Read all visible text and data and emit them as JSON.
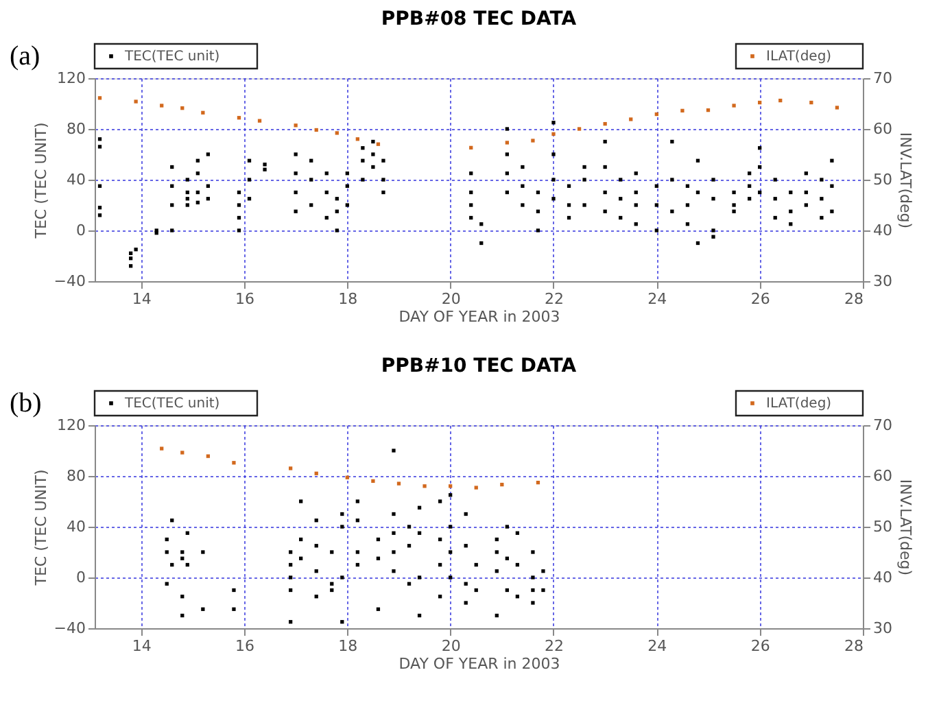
{
  "chart_data": [
    {
      "type": "scatter",
      "title": "PPB#08 TEC DATA",
      "xlabel": "DAY OF YEAR in 2003",
      "ylabel": "TEC (TEC UNIT)",
      "y2label": "INV.LAT(deg)",
      "annotations": [
        "(a)"
      ],
      "xlim": [
        13.1,
        28
      ],
      "xticks": [
        14,
        16,
        18,
        20,
        22,
        24,
        26,
        28
      ],
      "ylim": [
        -40,
        120
      ],
      "yticks": [
        -40,
        0,
        40,
        80,
        120
      ],
      "y2lim": [
        30,
        70
      ],
      "y2ticks": [
        30,
        40,
        50,
        60,
        70
      ],
      "grid": true,
      "legend": "top",
      "marker": "square",
      "series": [
        {
          "name": "TEC(TEC unit)",
          "color": "#000000",
          "x": [
            13.2,
            13.2,
            13.2,
            13.2,
            13.2,
            13.8,
            13.8,
            13.8,
            13.9,
            14.3,
            14.3,
            14.6,
            14.6,
            14.6,
            14.6,
            14.9,
            14.9,
            14.9,
            14.9,
            15.1,
            15.1,
            15.1,
            15.1,
            15.3,
            15.3,
            15.3,
            15.9,
            15.9,
            15.9,
            15.9,
            16.1,
            16.1,
            16.1,
            16.4,
            16.4,
            17.0,
            17.0,
            17.0,
            17.0,
            17.3,
            17.3,
            17.3,
            17.6,
            17.6,
            17.6,
            17.8,
            17.8,
            17.8,
            18.0,
            18.0,
            18.0,
            18.3,
            18.3,
            18.3,
            18.5,
            18.5,
            18.5,
            18.7,
            18.7,
            18.7,
            20.4,
            20.4,
            20.4,
            20.4,
            20.6,
            20.6,
            21.1,
            21.1,
            21.1,
            21.1,
            21.4,
            21.4,
            21.4,
            21.7,
            21.7,
            21.7,
            22.0,
            22.0,
            22.0,
            22.0,
            22.3,
            22.3,
            22.3,
            22.6,
            22.6,
            22.6,
            23.0,
            23.0,
            23.0,
            23.0,
            23.3,
            23.3,
            23.3,
            23.6,
            23.6,
            23.6,
            23.6,
            24.0,
            24.0,
            24.0,
            24.3,
            24.3,
            24.3,
            24.6,
            24.6,
            24.6,
            24.8,
            24.8,
            24.8,
            25.1,
            25.1,
            25.1,
            25.1,
            25.5,
            25.5,
            25.5,
            25.8,
            25.8,
            25.8,
            26.0,
            26.0,
            26.0,
            26.3,
            26.3,
            26.3,
            26.6,
            26.6,
            26.6,
            26.9,
            26.9,
            26.9,
            27.2,
            27.2,
            27.2,
            27.4,
            27.4,
            27.4
          ],
          "values": [
            72,
            66,
            35,
            18,
            12,
            -28,
            -22,
            -18,
            -15,
            0,
            -2,
            0,
            50,
            35,
            20,
            30,
            25,
            40,
            20,
            55,
            45,
            30,
            22,
            60,
            35,
            25,
            20,
            30,
            0,
            10,
            40,
            55,
            25,
            52,
            48,
            60,
            45,
            30,
            15,
            55,
            40,
            20,
            45,
            30,
            10,
            25,
            15,
            0,
            35,
            45,
            20,
            55,
            65,
            40,
            70,
            60,
            50,
            55,
            40,
            30,
            45,
            30,
            20,
            10,
            5,
            -10,
            80,
            60,
            45,
            30,
            50,
            35,
            20,
            30,
            15,
            0,
            85,
            60,
            40,
            25,
            35,
            20,
            10,
            50,
            40,
            20,
            70,
            50,
            30,
            15,
            40,
            25,
            10,
            45,
            30,
            20,
            5,
            35,
            20,
            0,
            70,
            40,
            15,
            35,
            20,
            5,
            55,
            30,
            -10,
            40,
            25,
            -5,
            0,
            30,
            15,
            20,
            45,
            35,
            25,
            65,
            50,
            30,
            40,
            25,
            10,
            30,
            15,
            5,
            45,
            30,
            20,
            40,
            25,
            10,
            55,
            35,
            15
          ]
        },
        {
          "name": "ILAT(deg)",
          "color": "#d2691e",
          "axis": "y2",
          "x": [
            13.2,
            13.9,
            14.4,
            14.8,
            15.2,
            15.9,
            16.3,
            17.0,
            17.4,
            17.8,
            18.2,
            18.6,
            20.4,
            21.1,
            21.6,
            22.0,
            22.5,
            23.0,
            23.5,
            24.0,
            24.5,
            25.0,
            25.5,
            26.0,
            26.4,
            27.0,
            27.5
          ],
          "values": [
            66.1,
            65.4,
            64.6,
            64.1,
            63.2,
            62.2,
            61.6,
            60.7,
            59.8,
            59.2,
            58.0,
            57.0,
            56.3,
            57.3,
            57.7,
            59.0,
            60.0,
            61.0,
            61.9,
            62.9,
            63.6,
            63.7,
            64.6,
            65.2,
            65.6,
            65.2,
            64.2
          ]
        }
      ]
    },
    {
      "type": "scatter",
      "title": "PPB#10 TEC DATA",
      "xlabel": "DAY OF YEAR in 2003",
      "ylabel": "TEC (TEC UNIT)",
      "y2label": "INV.LAT(deg)",
      "annotations": [
        "(b)"
      ],
      "xlim": [
        13.1,
        28
      ],
      "xticks": [
        14,
        16,
        18,
        20,
        22,
        24,
        26,
        28
      ],
      "ylim": [
        -40,
        120
      ],
      "yticks": [
        -40,
        0,
        40,
        80,
        120
      ],
      "y2lim": [
        30,
        70
      ],
      "y2ticks": [
        30,
        40,
        50,
        60,
        70
      ],
      "grid": true,
      "legend": "top",
      "marker": "square",
      "series": [
        {
          "name": "TEC(TEC unit)",
          "color": "#000000",
          "x": [
            14.5,
            14.5,
            14.5,
            14.6,
            14.6,
            14.8,
            14.8,
            14.8,
            14.8,
            14.9,
            14.9,
            15.2,
            15.2,
            15.8,
            15.8,
            16.9,
            16.9,
            16.9,
            16.9,
            16.9,
            17.1,
            17.1,
            17.1,
            17.4,
            17.4,
            17.4,
            17.4,
            17.7,
            17.7,
            17.7,
            17.9,
            17.9,
            17.9,
            17.9,
            18.2,
            18.2,
            18.2,
            18.2,
            18.6,
            18.6,
            18.6,
            18.9,
            18.9,
            18.9,
            18.9,
            18.9,
            19.2,
            19.2,
            19.2,
            19.4,
            19.4,
            19.4,
            19.4,
            19.8,
            19.8,
            19.8,
            19.8,
            20.0,
            20.0,
            20.0,
            20.0,
            20.3,
            20.3,
            20.3,
            20.3,
            20.5,
            20.5,
            20.9,
            20.9,
            20.9,
            20.9,
            21.1,
            21.1,
            21.1,
            21.3,
            21.3,
            21.3,
            21.6,
            21.6,
            21.6,
            21.6,
            21.8,
            21.8
          ],
          "values": [
            30,
            20,
            -5,
            45,
            10,
            15,
            20,
            -15,
            -30,
            35,
            10,
            20,
            -25,
            -10,
            -25,
            20,
            10,
            0,
            -10,
            -35,
            60,
            30,
            15,
            45,
            25,
            5,
            -15,
            20,
            -5,
            -10,
            50,
            40,
            0,
            -35,
            60,
            45,
            20,
            10,
            15,
            30,
            -25,
            100,
            50,
            35,
            20,
            5,
            40,
            25,
            -5,
            55,
            35,
            0,
            -30,
            60,
            30,
            10,
            -15,
            65,
            40,
            20,
            0,
            50,
            25,
            -5,
            -20,
            10,
            -10,
            30,
            20,
            5,
            -30,
            40,
            15,
            -10,
            35,
            10,
            -15,
            20,
            0,
            -10,
            -20,
            5,
            -10
          ]
        },
        {
          "name": "ILAT(deg)",
          "color": "#d2691e",
          "axis": "y2",
          "x": [
            14.4,
            14.8,
            15.3,
            15.8,
            16.9,
            17.4,
            18.0,
            18.5,
            19.0,
            19.5,
            20.0,
            20.5,
            21.0,
            21.7
          ],
          "values": [
            65.4,
            64.6,
            63.9,
            62.6,
            61.5,
            60.5,
            59.7,
            59.0,
            58.5,
            58.0,
            58.0,
            57.7,
            58.3,
            58.7
          ]
        }
      ]
    }
  ]
}
